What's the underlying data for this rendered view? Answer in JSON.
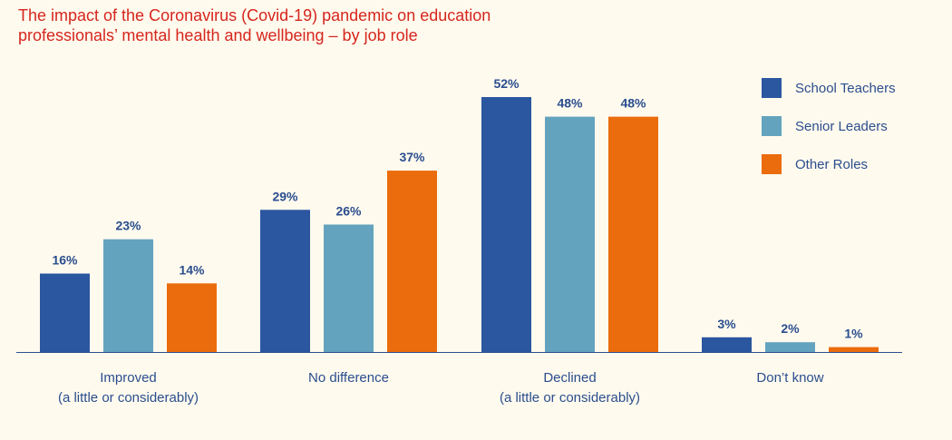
{
  "chart_data": {
    "type": "bar",
    "title_lines": [
      "The impact of the Coronavirus (Covid-19) pandemic on education",
      "professionals’ mental health and wellbeing – by job role"
    ],
    "categories": [
      [
        "Improved",
        "(a little or considerably)"
      ],
      [
        "No difference"
      ],
      [
        "Declined",
        "(a little or considerably)"
      ],
      [
        "Don’t know"
      ]
    ],
    "series": [
      {
        "name": "School Teachers",
        "color": "#2b56a0",
        "values": [
          16,
          29,
          52,
          3
        ]
      },
      {
        "name": "Senior Leaders",
        "color": "#64a3be",
        "values": [
          23,
          26,
          48,
          2
        ]
      },
      {
        "name": "Other Roles",
        "color": "#eb6c0c",
        "values": [
          14,
          37,
          48,
          1
        ]
      }
    ],
    "value_suffix": "%",
    "ylim": [
      0,
      52
    ],
    "grid": false,
    "legend_position": "top-right"
  }
}
